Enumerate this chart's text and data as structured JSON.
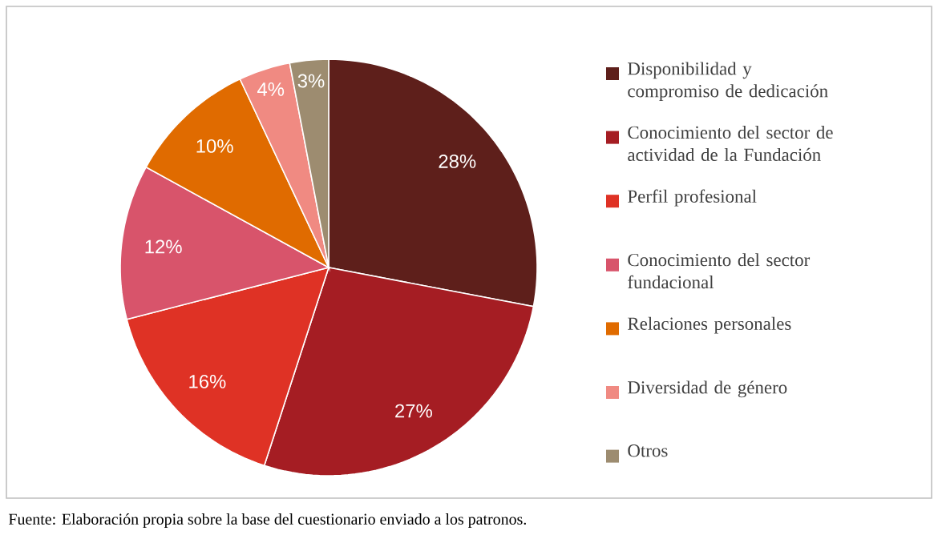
{
  "chart_data": {
    "type": "pie",
    "categories": [
      "Disponibilidad y compromiso de dedicación",
      "Conocimiento del sector de actividad de la Fundación",
      "Perfil profesional",
      "Conocimiento del sector fundacional",
      "Relaciones personales",
      "Diversidad de género",
      "Otros"
    ],
    "values": [
      28,
      27,
      16,
      12,
      10,
      4,
      3
    ],
    "value_labels": [
      "28%",
      "27%",
      "16%",
      "12%",
      "10%",
      "4%",
      "3%"
    ],
    "colors": [
      "#5e1f1b",
      "#a51d23",
      "#df3225",
      "#d8546b",
      "#e06b00",
      "#f08a82",
      "#9d8c70"
    ],
    "legend": "right",
    "annotations": [
      "Fuente: Elaboración propia sobre la base del cuestionario enviado a los patronos."
    ]
  }
}
